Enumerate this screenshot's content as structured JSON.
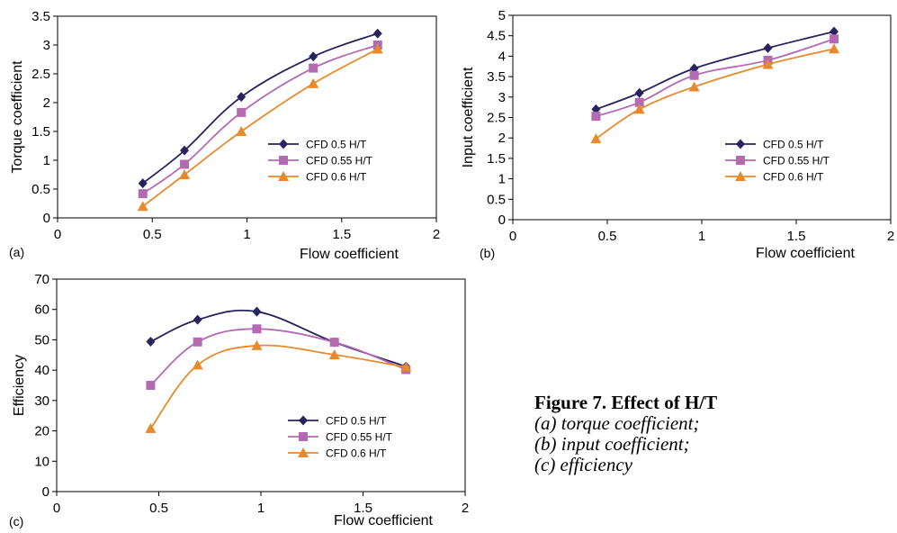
{
  "chart_data": [
    {
      "type": "line",
      "panel_label": "(a)",
      "xlabel": "Flow coefficient",
      "ylabel": "Torque coefficient",
      "xlim": [
        0,
        2
      ],
      "ylim": [
        0,
        3.5
      ],
      "xticks": [
        0,
        0.5,
        1,
        1.5,
        2
      ],
      "xtick_labels": [
        "0",
        "0.5",
        "1",
        "1.5",
        "2"
      ],
      "yticks": [
        0,
        0.5,
        1,
        1.5,
        2,
        2.5,
        3,
        3.5
      ],
      "ytick_labels": [
        "0",
        "0.5",
        "1",
        "1.5",
        "2",
        "2.5",
        "3",
        "3.5"
      ],
      "grid": false,
      "legend": "center-right",
      "series": [
        {
          "name": "CFD 0.5 H/T",
          "marker": "diamond",
          "color": "#26235e",
          "x": [
            0.45,
            0.67,
            0.97,
            1.35,
            1.69
          ],
          "y": [
            0.6,
            1.17,
            2.1,
            2.8,
            3.2
          ]
        },
        {
          "name": "CFD 0.55 H/T",
          "marker": "square",
          "color": "#b46ab0",
          "x": [
            0.45,
            0.67,
            0.97,
            1.35,
            1.69
          ],
          "y": [
            0.42,
            0.93,
            1.83,
            2.6,
            3.0
          ]
        },
        {
          "name": "CFD 0.6 H/T",
          "marker": "triangle",
          "color": "#e8892b",
          "x": [
            0.45,
            0.67,
            0.97,
            1.35,
            1.69
          ],
          "y": [
            0.2,
            0.75,
            1.5,
            2.33,
            2.93
          ]
        }
      ]
    },
    {
      "type": "line",
      "panel_label": "(b)",
      "xlabel": "Flow coefficient",
      "ylabel": "Input coefficient",
      "xlim": [
        0,
        2
      ],
      "ylim": [
        0,
        5
      ],
      "xticks": [
        0,
        0.5,
        1,
        1.5,
        2
      ],
      "xtick_labels": [
        "0",
        "0.5",
        "1",
        "1.5",
        "2"
      ],
      "yticks": [
        0,
        0.5,
        1,
        1.5,
        2,
        2.5,
        3,
        3.5,
        4,
        4.5,
        5
      ],
      "ytick_labels": [
        "0",
        "0.5",
        "1",
        "1.5",
        "2",
        "2.5",
        "3",
        "3.5",
        "4",
        "4.5",
        "5"
      ],
      "grid": false,
      "legend": "center-right",
      "series": [
        {
          "name": "CFD 0.5 H/T",
          "marker": "diamond",
          "color": "#26235e",
          "x": [
            0.44,
            0.67,
            0.96,
            1.35,
            1.7
          ],
          "y": [
            2.7,
            3.1,
            3.7,
            4.2,
            4.6
          ]
        },
        {
          "name": "CFD 0.55 H/T",
          "marker": "square",
          "color": "#b46ab0",
          "x": [
            0.44,
            0.67,
            0.96,
            1.35,
            1.7
          ],
          "y": [
            2.53,
            2.87,
            3.53,
            3.9,
            4.42
          ]
        },
        {
          "name": "CFD 0.6 H/T",
          "marker": "triangle",
          "color": "#e8892b",
          "x": [
            0.44,
            0.67,
            0.96,
            1.35,
            1.7
          ],
          "y": [
            1.98,
            2.7,
            3.25,
            3.8,
            4.18
          ]
        }
      ]
    },
    {
      "type": "line",
      "panel_label": "(c)",
      "xlabel": "Flow coefficient",
      "ylabel": "Efficiency",
      "xlim": [
        0,
        2
      ],
      "ylim": [
        0,
        70
      ],
      "xticks": [
        0,
        0.5,
        1,
        1.5,
        2
      ],
      "xtick_labels": [
        "0",
        "0.5",
        "1",
        "1.5",
        "2"
      ],
      "yticks": [
        0,
        10,
        20,
        30,
        40,
        50,
        60,
        70
      ],
      "ytick_labels": [
        "0",
        "10",
        "20",
        "30",
        "40",
        "50",
        "60",
        "70"
      ],
      "grid": false,
      "legend": "bottom-center",
      "series": [
        {
          "name": "CFD 0.5 H/T",
          "marker": "diamond",
          "color": "#26235e",
          "x": [
            0.46,
            0.69,
            0.98,
            1.36,
            1.71
          ],
          "y": [
            49.4,
            56.6,
            59.3,
            49.2,
            41.2
          ]
        },
        {
          "name": "CFD 0.55 H/T",
          "marker": "square",
          "color": "#b46ab0",
          "x": [
            0.46,
            0.69,
            0.98,
            1.36,
            1.71
          ],
          "y": [
            35,
            49.3,
            53.6,
            49.2,
            40.2
          ]
        },
        {
          "name": "CFD 0.6 H/T",
          "marker": "triangle",
          "color": "#e8892b",
          "x": [
            0.46,
            0.69,
            0.98,
            1.36,
            1.71
          ],
          "y": [
            20.8,
            41.7,
            48.1,
            45.1,
            41.0
          ]
        }
      ]
    }
  ],
  "caption": {
    "title": "Figure 7. Effect of H/T",
    "lines": [
      "(a) torque coefficient;",
      "(b) input coefficient;",
      "(c) efficiency"
    ]
  }
}
